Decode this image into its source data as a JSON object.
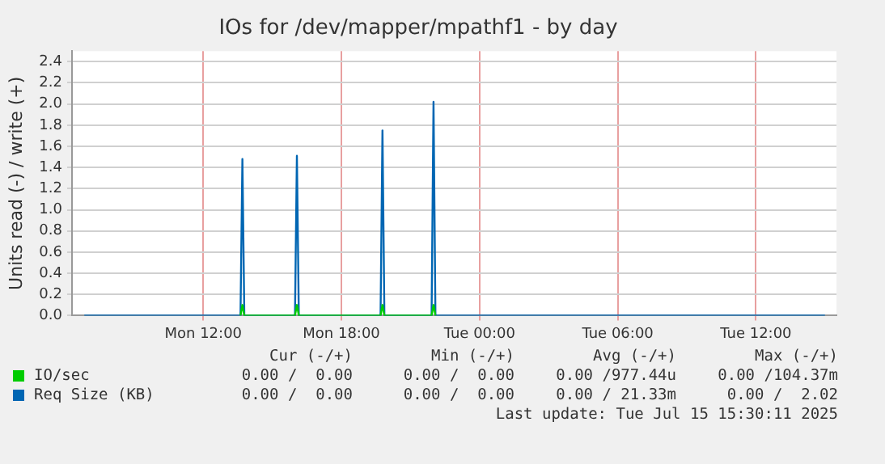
{
  "chart_data": {
    "type": "line",
    "title": "IOs for /dev/mapper/mpathf1 - by day",
    "ylabel": "Units read (-) / write (+)",
    "xlim": [
      "2025-07-14T06:18",
      "2025-07-15T15:30"
    ],
    "ylim": [
      0,
      2.5
    ],
    "xticks": [
      {
        "value": "2025-07-14T12:00",
        "label": "Mon 12:00"
      },
      {
        "value": "2025-07-14T18:00",
        "label": "Mon 18:00"
      },
      {
        "value": "2025-07-15T00:00",
        "label": "Tue 00:00"
      },
      {
        "value": "2025-07-15T06:00",
        "label": "Tue 06:00"
      },
      {
        "value": "2025-07-15T12:00",
        "label": "Tue 12:00"
      }
    ],
    "yticks": [
      {
        "value": 0,
        "label": "0.0"
      },
      {
        "value": 0.2,
        "label": "0.2"
      },
      {
        "value": 0.4,
        "label": "0.4"
      },
      {
        "value": 0.6,
        "label": "0.6"
      },
      {
        "value": 0.8,
        "label": "0.8"
      },
      {
        "value": 1,
        "label": "1.0"
      },
      {
        "value": 1.2,
        "label": "1.2"
      },
      {
        "value": 1.4,
        "label": "1.4"
      },
      {
        "value": 1.6,
        "label": "1.6"
      },
      {
        "value": 1.8,
        "label": "1.8"
      },
      {
        "value": 2,
        "label": "2.0"
      },
      {
        "value": 2.2,
        "label": "2.2"
      },
      {
        "value": 2.4,
        "label": "2.4"
      }
    ],
    "grid": true,
    "legend": "bottom",
    "marker": "none",
    "line_style": "solid",
    "series": [
      {
        "name": "IO/sec",
        "color": "#00cc00",
        "x": [
          "2025-07-14T13:37",
          "2025-07-14T13:42",
          "2025-07-14T13:47",
          "2025-07-14T15:59",
          "2025-07-14T16:04",
          "2025-07-14T16:09",
          "2025-07-14T19:42",
          "2025-07-14T19:47",
          "2025-07-14T19:52",
          "2025-07-14T21:55",
          "2025-07-14T22:00",
          "2025-07-14T22:05"
        ],
        "values": [
          0,
          0.1,
          0,
          0,
          0.1,
          0,
          0,
          0.1,
          0,
          0,
          0.1,
          0
        ]
      },
      {
        "name": "Req Size (KB)",
        "color": "#0066b3",
        "x": [
          "2025-07-14T06:50",
          "2025-07-14T13:37",
          "2025-07-14T13:42",
          "2025-07-14T13:47",
          "2025-07-14T15:59",
          "2025-07-14T16:04",
          "2025-07-14T16:09",
          "2025-07-14T19:42",
          "2025-07-14T19:47",
          "2025-07-14T19:52",
          "2025-07-14T21:55",
          "2025-07-14T22:00",
          "2025-07-14T22:05",
          "2025-07-15T15:00"
        ],
        "values": [
          0,
          0,
          1.48,
          0,
          0,
          1.51,
          0,
          0,
          1.75,
          0,
          0,
          2.02,
          0,
          0
        ]
      }
    ],
    "annotations": [
      "Cur (-/+)",
      "Min (-/+)",
      "Avg (-/+)",
      "Max (-/+)",
      "0.00 /  0.00",
      "0.00 /  0.00",
      "0.00 /977.44u",
      "0.00 /104.37m",
      "0.00 /  0.00",
      "0.00 /  0.00",
      "0.00 / 21.33m",
      "0.00 /  2.02",
      "Last update: Tue Jul 15 15:30:11 2025"
    ]
  }
}
